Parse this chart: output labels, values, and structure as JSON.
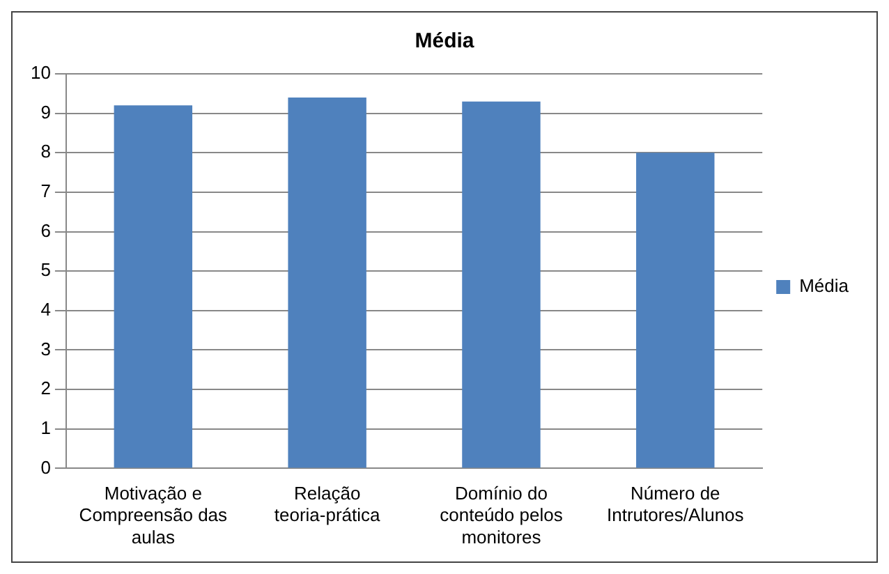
{
  "chart_data": {
    "type": "bar",
    "title": "Média",
    "categories": [
      "Motivação e Compreensão das aulas",
      "Relação teoria-prática",
      "Domínio do conteúdo pelos monitores",
      "Número de Intrutores/Alunos"
    ],
    "series": [
      {
        "name": "Média",
        "color": "#4f81bd",
        "values": [
          9.2,
          9.4,
          9.3,
          8.0
        ]
      }
    ],
    "ylim": [
      0,
      10
    ],
    "yticks": [
      0,
      1,
      2,
      3,
      4,
      5,
      6,
      7,
      8,
      9,
      10
    ],
    "grid": "y",
    "legend": "right"
  }
}
